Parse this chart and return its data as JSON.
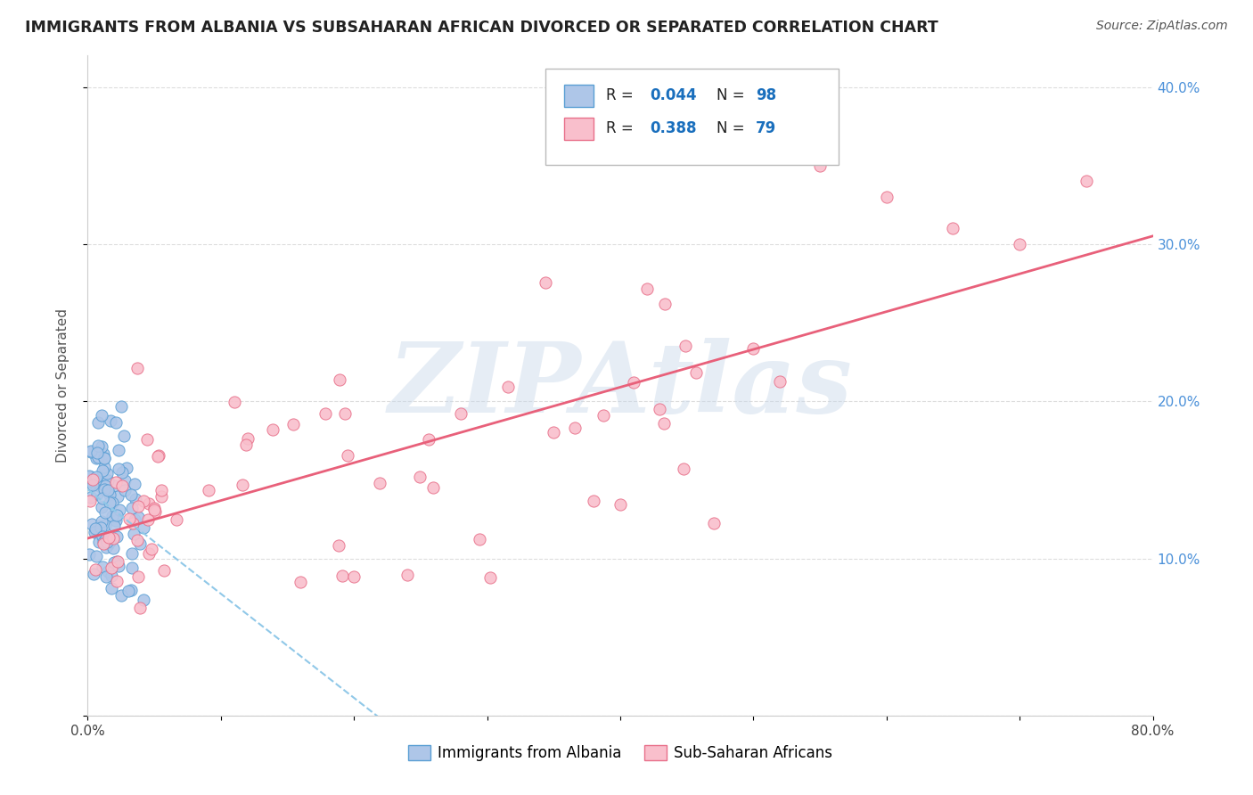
{
  "title": "IMMIGRANTS FROM ALBANIA VS SUBSAHARAN AFRICAN DIVORCED OR SEPARATED CORRELATION CHART",
  "source": "Source: ZipAtlas.com",
  "ylabel": "Divorced or Separated",
  "xlim": [
    0.0,
    0.8
  ],
  "ylim": [
    0.0,
    0.42
  ],
  "xticks": [
    0.0,
    0.1,
    0.2,
    0.3,
    0.4,
    0.5,
    0.6,
    0.7,
    0.8
  ],
  "xticklabels": [
    "0.0%",
    "",
    "",
    "",
    "",
    "",
    "",
    "",
    "80.0%"
  ],
  "yticks": [
    0.0,
    0.1,
    0.2,
    0.3,
    0.4
  ],
  "yticklabels_right": [
    "",
    "10.0%",
    "20.0%",
    "30.0%",
    "40.0%"
  ],
  "albania_color": "#aec6e8",
  "albania_edge": "#5a9fd4",
  "subsaharan_color": "#f9bfcc",
  "subsaharan_edge": "#e8708a",
  "trend_blue_color": "#90c8e8",
  "trend_pink_color": "#e8607a",
  "legend_blue_label": "Immigrants from Albania",
  "legend_pink_label": "Sub-Saharan Africans",
  "R_albania": "0.044",
  "N_albania": "98",
  "R_subsaharan": "0.388",
  "N_subsaharan": "79",
  "watermark": "ZIPAtlas",
  "grid_color": "#dddddd",
  "tick_label_color": "#4a90d9",
  "title_color": "#222222",
  "source_color": "#555555"
}
